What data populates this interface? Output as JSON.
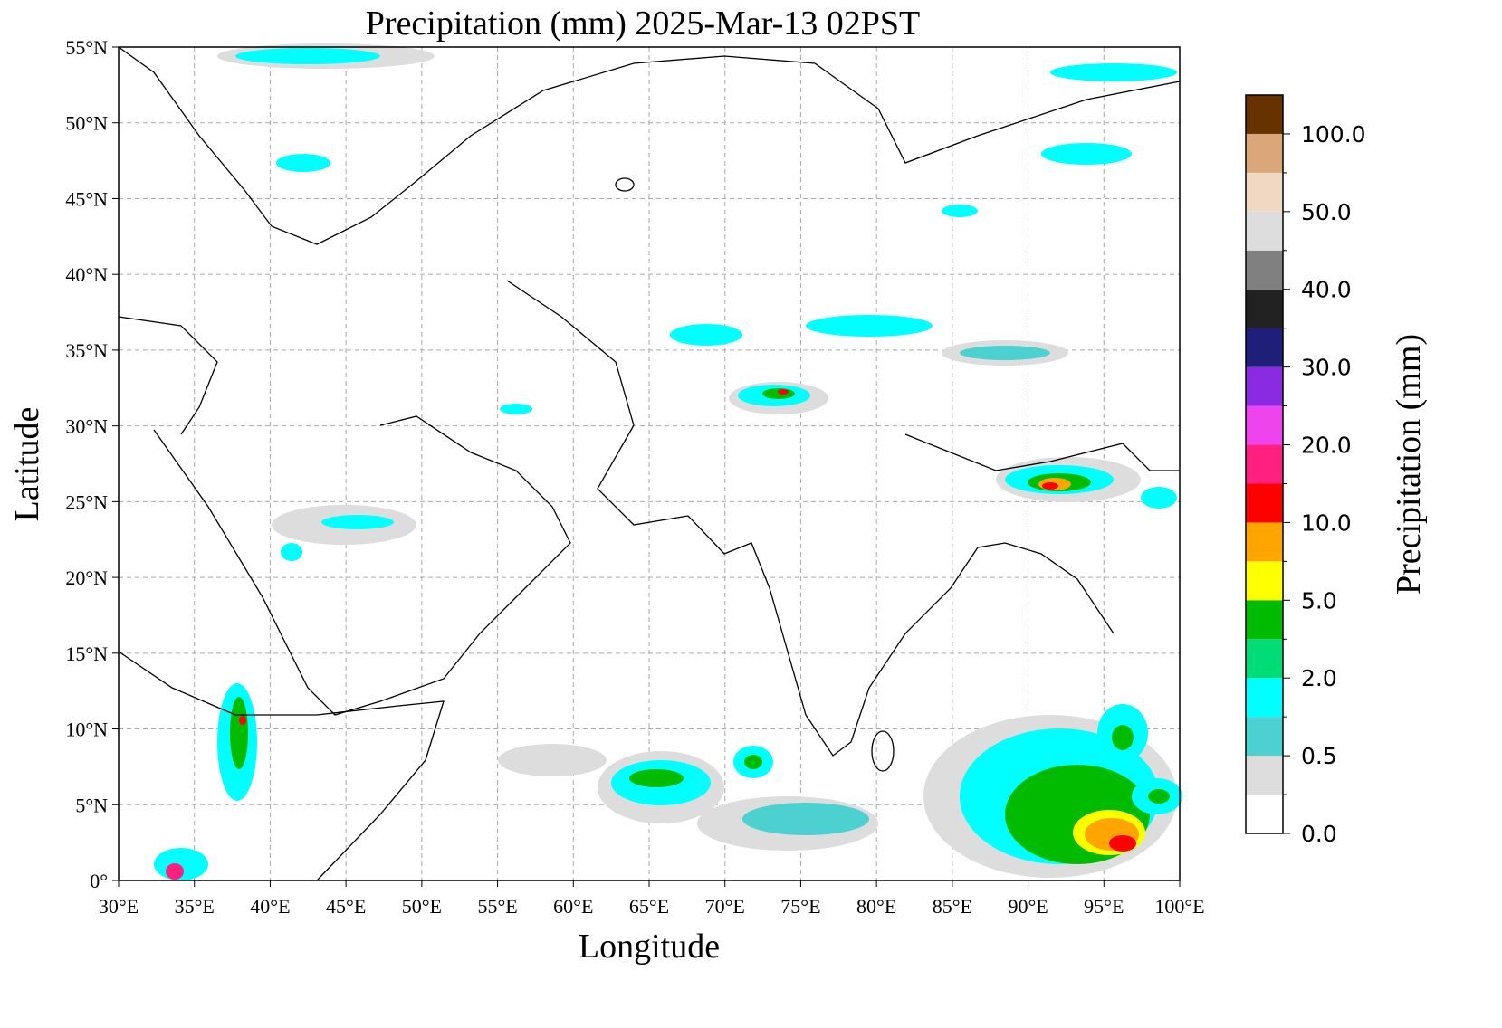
{
  "chart_data": {
    "type": "map",
    "title": "Precipitation (mm)  2025-Mar-13 02PST",
    "x_label": "Longitude",
    "y_label": "Latitude",
    "xlim": [
      30,
      100
    ],
    "ylim": [
      0,
      55
    ],
    "grid": true,
    "xticks": [
      {
        "value": 30,
        "label": "30°E"
      },
      {
        "value": 35,
        "label": "35°E"
      },
      {
        "value": 40,
        "label": "40°E"
      },
      {
        "value": 45,
        "label": "45°E"
      },
      {
        "value": 50,
        "label": "50°E"
      },
      {
        "value": 55,
        "label": "55°E"
      },
      {
        "value": 60,
        "label": "60°E"
      },
      {
        "value": 65,
        "label": "65°E"
      },
      {
        "value": 70,
        "label": "70°E"
      },
      {
        "value": 75,
        "label": "75°E"
      },
      {
        "value": 80,
        "label": "80°E"
      },
      {
        "value": 85,
        "label": "85°E"
      },
      {
        "value": 90,
        "label": "90°E"
      },
      {
        "value": 95,
        "label": "95°E"
      },
      {
        "value": 100,
        "label": "100°E"
      }
    ],
    "yticks": [
      {
        "value": 0,
        "label": "0°"
      },
      {
        "value": 5,
        "label": "5°N"
      },
      {
        "value": 10,
        "label": "10°N"
      },
      {
        "value": 15,
        "label": "15°N"
      },
      {
        "value": 20,
        "label": "20°N"
      },
      {
        "value": 25,
        "label": "25°N"
      },
      {
        "value": 30,
        "label": "30°N"
      },
      {
        "value": 35,
        "label": "35°N"
      },
      {
        "value": 40,
        "label": "40°N"
      },
      {
        "value": 45,
        "label": "45°N"
      },
      {
        "value": 50,
        "label": "50°N"
      },
      {
        "value": 55,
        "label": "55°N"
      }
    ],
    "colorbar": {
      "label": "Precipitation (mm)",
      "colors": [
        "#ffffff",
        "#dddddd",
        "#4dd0d0",
        "#00ffff",
        "#00dd77",
        "#00bb00",
        "#ffff00",
        "#ffa500",
        "#ff0000",
        "#ff2080",
        "#ee44ee",
        "#8a2be2",
        "#1f1f7a",
        "#222222",
        "#808080",
        "#dddddd",
        "#f0d9c2",
        "#d9a77a",
        "#663300"
      ],
      "ticks": [
        {
          "value": 0,
          "label": "0.0"
        },
        {
          "value": 0.5,
          "label": "0.5"
        },
        {
          "value": 2,
          "label": "2.0"
        },
        {
          "value": 5,
          "label": "5.0"
        },
        {
          "value": 10,
          "label": "10.0"
        },
        {
          "value": 20,
          "label": "20.0"
        },
        {
          "value": 30,
          "label": "30.0"
        },
        {
          "value": 40,
          "label": "40.0"
        },
        {
          "value": 50,
          "label": "50.0"
        },
        {
          "value": 100,
          "label": "100.0"
        }
      ]
    }
  }
}
